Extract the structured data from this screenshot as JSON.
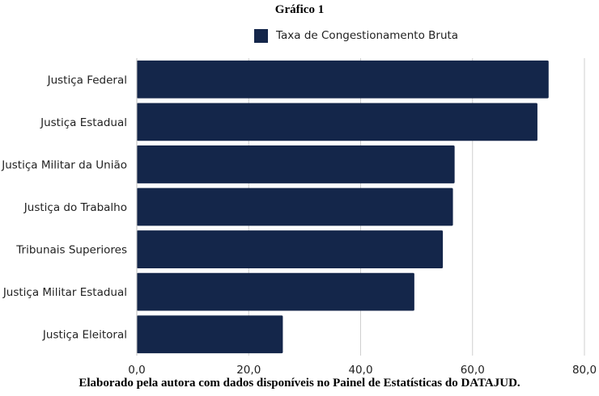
{
  "chart_data": {
    "type": "bar",
    "orientation": "horizontal",
    "title": "Gráfico 1",
    "categories": [
      "Justiça Federal",
      "Justiça Estadual",
      "Justiça Militar da União",
      "Justiça do Trabalho",
      "Tribunais Superiores",
      "Justiça Militar Estadual",
      "Justiça Eleitoral"
    ],
    "series": [
      {
        "name": "Taxa de Congestionamento Bruta",
        "values": [
          73.6,
          71.6,
          56.8,
          56.5,
          54.7,
          49.6,
          26.1
        ],
        "color": "#14264a"
      }
    ],
    "xlim": [
      0,
      80
    ],
    "xticks": [
      0,
      20,
      40,
      60,
      80
    ],
    "xtick_labels": [
      "0,0",
      "20,0",
      "40,0",
      "60,0",
      "80,0"
    ],
    "grid": "vertical",
    "legend_position": "top"
  },
  "note": "Elaborado pela autora com dados disponíveis no Painel de Estatísticas do DATAJUD."
}
